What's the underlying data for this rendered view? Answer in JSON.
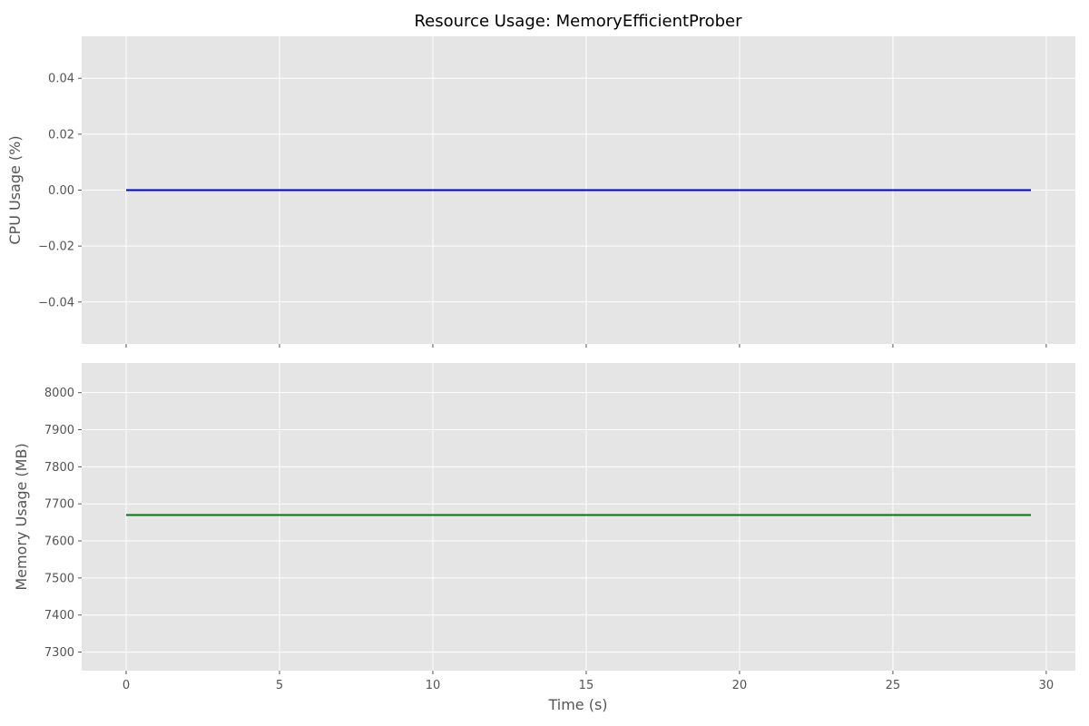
{
  "chart_data": {
    "type": "line",
    "title": "Resource Usage: MemoryEfficientProber",
    "xlabel": "Time (s)",
    "xlim": [
      -1.45,
      30.95
    ],
    "x_ticks": [
      "0",
      "5",
      "10",
      "15",
      "20",
      "25",
      "30"
    ],
    "x_tick_values": [
      0,
      5,
      10,
      15,
      20,
      25,
      30
    ],
    "grid": true,
    "panels": [
      {
        "ylabel": "CPU Usage (%)",
        "ylim": [
          -0.055,
          0.055
        ],
        "y_ticks": [
          "−0.04",
          "−0.02",
          "0.00",
          "0.02",
          "0.04"
        ],
        "y_tick_values": [
          -0.04,
          -0.02,
          0.0,
          0.02,
          0.04
        ],
        "show_x_tick_labels": false,
        "series": [
          {
            "color": "#0000cc",
            "x": [
              0,
              29.5
            ],
            "y": [
              0.0,
              0.0
            ]
          }
        ]
      },
      {
        "ylabel": "Memory Usage (MB)",
        "ylim": [
          7250,
          8080
        ],
        "y_ticks": [
          "7300",
          "7400",
          "7500",
          "7600",
          "7700",
          "7800",
          "7900",
          "8000"
        ],
        "y_tick_values": [
          7300,
          7400,
          7500,
          7600,
          7700,
          7800,
          7900,
          8000
        ],
        "show_x_tick_labels": true,
        "series": [
          {
            "color": "#007700",
            "x": [
              0,
              29.5
            ],
            "y": [
              7670,
              7670
            ]
          }
        ]
      }
    ]
  }
}
